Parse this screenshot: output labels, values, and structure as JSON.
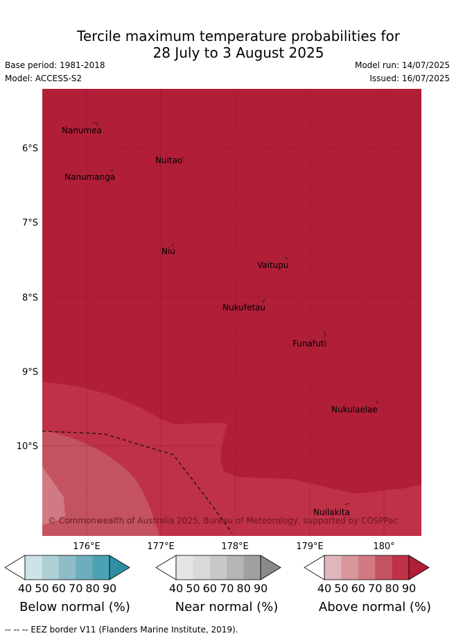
{
  "title": {
    "line1": "Tercile maximum temperature probabilities for",
    "line2": "28 July to 3 August 2025"
  },
  "meta": {
    "base_period": "Base period: 1981-2018",
    "model": "Model: ACCESS-S2",
    "model_run": "Model run: 14/07/2025",
    "issued": "Issued: 16/07/2025"
  },
  "map": {
    "lat_labels": [
      "6°S",
      "7°S",
      "8°S",
      "9°S",
      "10°S"
    ],
    "lon_labels": [
      "176°E",
      "177°E",
      "178°E",
      "179°E",
      "180°"
    ],
    "places": [
      "Nanumea",
      "Nuitao",
      "Nanumanga",
      "Niu",
      "Vaitupu",
      "Nukufetau",
      "Funafuti",
      "Nukulaelae",
      "Nuilakita"
    ],
    "copyright": "© Commonwealth of Australia 2025, Bureau of Meteorology, supported by COSPPac",
    "colors": {
      "above_90": "#b11e38",
      "above_80": "#bf3148",
      "above_70": "#c45362",
      "above_60": "#d07a83"
    }
  },
  "colorbars": [
    {
      "label": "Below normal (%)",
      "ticks": [
        "40",
        "50",
        "60",
        "70",
        "80",
        "90"
      ],
      "colors": [
        "#ffffff",
        "#cde3e9",
        "#acd0d6",
        "#8ebcc8",
        "#6dadbd",
        "#4aa3b4",
        "#2e8ea5"
      ]
    },
    {
      "label": "Near normal (%)",
      "ticks": [
        "40",
        "50",
        "60",
        "70",
        "80",
        "90"
      ],
      "colors": [
        "#ffffff",
        "#e6e6e6",
        "#d9d9d9",
        "#c8c8c8",
        "#b5b5b5",
        "#a0a0a0",
        "#8a8a8a"
      ]
    },
    {
      "label": "Above normal (%)",
      "ticks": [
        "40",
        "50",
        "60",
        "70",
        "80",
        "90"
      ],
      "colors": [
        "#ffffff",
        "#e0b6bc",
        "#d8979d",
        "#d07a83",
        "#c45362",
        "#bf3148",
        "#b11e38"
      ]
    }
  ],
  "footer": "--  --  -- EEZ border V11 (Flanders Marine Institute, 2019)."
}
